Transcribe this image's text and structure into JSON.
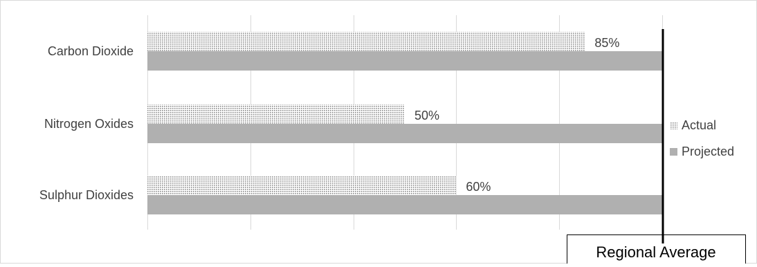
{
  "chart_data": {
    "type": "bar",
    "orientation": "horizontal",
    "categories": [
      "Carbon Dioxide",
      "Nitrogen Oxides",
      "Sulphur Dioxides"
    ],
    "series": [
      {
        "name": "Actual",
        "values": [
          85,
          50,
          60
        ],
        "data_labels": [
          "85%",
          "50%",
          "60%"
        ],
        "color": "#a6a6a6",
        "pattern": "dotted"
      },
      {
        "name": "Projected",
        "values": [
          100,
          100,
          100
        ],
        "color": "#b0b0b0",
        "pattern": "solid"
      }
    ],
    "xlim": [
      0,
      100
    ],
    "grid": true,
    "legend": "right",
    "reference_line": {
      "value": 100,
      "label": "Regional Average",
      "color": "#000000"
    },
    "title": "",
    "xlabel": "",
    "ylabel": ""
  }
}
